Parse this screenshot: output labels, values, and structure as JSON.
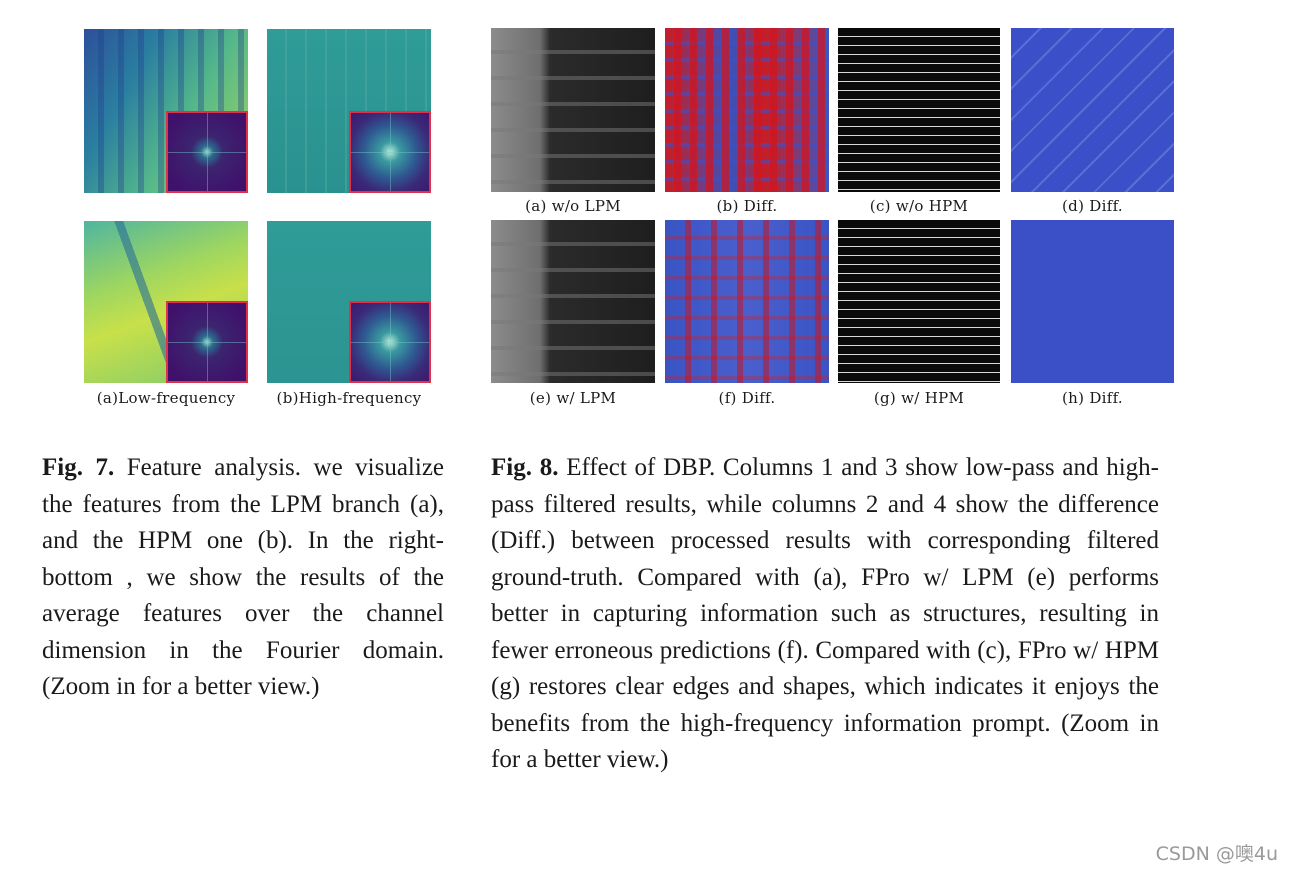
{
  "fig7": {
    "subcaptions": [
      "(a)Low-frequency",
      "(b)High-frequency"
    ],
    "label": "Fig. 7.",
    "text": "Feature analysis. we visualize the features from the LPM branch (a), and the HPM one (b). In the right-bottom , we show the results of the average features over the channel dimension in the Fourier domain. (Zoom in for a better view.)"
  },
  "fig8": {
    "subcaptions": [
      "(a) w/o LPM",
      "(b) Diff.",
      "(c) w/o HPM",
      "(d) Diff.",
      "(e) w/ LPM",
      "(f) Diff.",
      "(g) w/ HPM",
      "(h) Diff."
    ],
    "label": "Fig. 8.",
    "text": "Effect of DBP. Columns 1 and 3 show low-pass and high-pass filtered results, while columns 2 and 4 show the difference (Diff.) between processed results with corresponding filtered ground-truth. Compared with (a), FPro w/ LPM (e) performs better in capturing information such as structures, resulting in fewer erroneous predictions (f). Compared with (c), FPro w/ HPM (g) restores clear edges and shapes, which indicates it enjoys the benefits from the high-frequency information prompt. (Zoom in for a better view.)"
  },
  "watermark": "CSDN @噢4u"
}
